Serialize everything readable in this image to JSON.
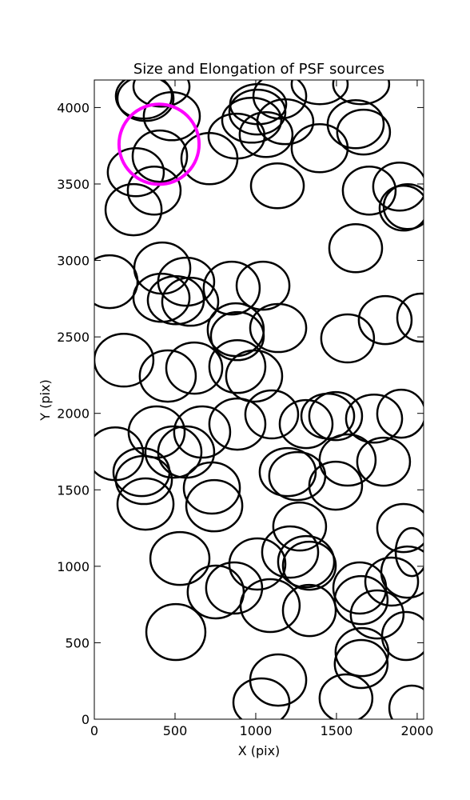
{
  "chart_data": {
    "type": "ellipse",
    "title": "Size and Elongation of PSF sources",
    "xlabel": "X (pix)",
    "ylabel": "Y (pix)",
    "xlim": [
      0,
      2040
    ],
    "ylim": [
      0,
      4180
    ],
    "xticks": [
      0,
      500,
      1000,
      1500,
      2000
    ],
    "yticks": [
      0,
      500,
      1000,
      1500,
      2000,
      2500,
      3000,
      3500,
      4000
    ],
    "color": "#000000",
    "x": [
      317,
      307,
      416,
      480,
      406,
      257,
      371,
      243,
      713,
      881,
      1010,
      1015,
      1149,
      975,
      1064,
      1183,
      1396,
      1619,
      1668,
      1653,
      1396,
      1134,
      1703,
      1891,
      1916,
      1941,
      1619,
      94,
      421,
      416,
      569,
      594,
      505,
      851,
      1045,
      876,
      886,
      1139,
      1569,
      1802,
      2025,
      183,
      455,
      619,
      886,
      990,
      129,
      386,
      668,
      490,
      569,
      292,
      307,
      317,
      728,
      743,
      1099,
      886,
      1312,
      1446,
      1495,
      1733,
      1901,
      1198,
      1257,
      1495,
      1569,
      1792,
      1272,
      1213,
      1010,
      1312,
      1332,
      530,
      752,
      866,
      1089,
      1332,
      1644,
      1653,
      1752,
      1916,
      1941,
      1842,
      1931,
      505,
      1658,
      1653,
      1139,
      1035,
      1559,
      1966,
      1966
    ],
    "y": [
      4059,
      4074,
      4137,
      3943,
      3682,
      3577,
      3457,
      3332,
      3666,
      3813,
      3970,
      4022,
      4074,
      3917,
      3823,
      3907,
      3734,
      3891,
      3839,
      4153,
      4153,
      3488,
      3457,
      3483,
      3342,
      3352,
      3080,
      2861,
      2950,
      2756,
      2861,
      2730,
      2740,
      2819,
      2835,
      2547,
      2505,
      2558,
      2490,
      2610,
      2626,
      2348,
      2244,
      2296,
      2306,
      2244,
      1736,
      1878,
      1878,
      1747,
      1747,
      1616,
      1564,
      1407,
      1512,
      1396,
      1993,
      1930,
      1930,
      1982,
      1982,
      1966,
      1998,
      1616,
      1590,
      1527,
      1695,
      1684,
      1260,
      1093,
      1015,
      1030,
      1004,
      1051,
      832,
      858,
      743,
      711,
      858,
      779,
      685,
      1250,
      962,
      900,
      544,
      570,
      439,
      361,
      256,
      110,
      136,
      73,
      1093
    ],
    "width": [
      347,
      347,
      347,
      347,
      337,
      347,
      327,
      347,
      347,
      347,
      347,
      347,
      327,
      366,
      327,
      347,
      347,
      347,
      327,
      347,
      347,
      327,
      327,
      327,
      297,
      297,
      327,
      347,
      347,
      347,
      347,
      347,
      347,
      347,
      327,
      347,
      327,
      347,
      327,
      327,
      297,
      366,
      347,
      347,
      347,
      347,
      347,
      347,
      347,
      347,
      347,
      347,
      347,
      347,
      347,
      347,
      327,
      347,
      327,
      327,
      327,
      347,
      297,
      347,
      347,
      327,
      347,
      327,
      327,
      347,
      347,
      347,
      327,
      366,
      347,
      347,
      366,
      327,
      327,
      327,
      327,
      327,
      327,
      327,
      297,
      366,
      327,
      327,
      347,
      347,
      327,
      277,
      198
    ],
    "height": [
      293,
      293,
      262,
      314,
      335,
      314,
      314,
      335,
      335,
      293,
      293,
      262,
      293,
      293,
      293,
      293,
      314,
      314,
      293,
      262,
      262,
      293,
      314,
      314,
      293,
      293,
      314,
      345,
      335,
      314,
      314,
      314,
      314,
      345,
      314,
      345,
      314,
      314,
      314,
      314,
      314,
      345,
      335,
      335,
      345,
      335,
      345,
      335,
      335,
      335,
      335,
      314,
      314,
      335,
      335,
      335,
      314,
      335,
      314,
      293,
      314,
      314,
      314,
      314,
      314,
      314,
      335,
      314,
      314,
      335,
      335,
      335,
      314,
      345,
      345,
      335,
      345,
      335,
      335,
      314,
      314,
      314,
      335,
      314,
      314,
      366,
      314,
      314,
      335,
      314,
      314,
      293,
      314
    ],
    "highlight": {
      "x": 401,
      "y": 3760,
      "radius": 248,
      "color": "#ff00ff"
    }
  }
}
